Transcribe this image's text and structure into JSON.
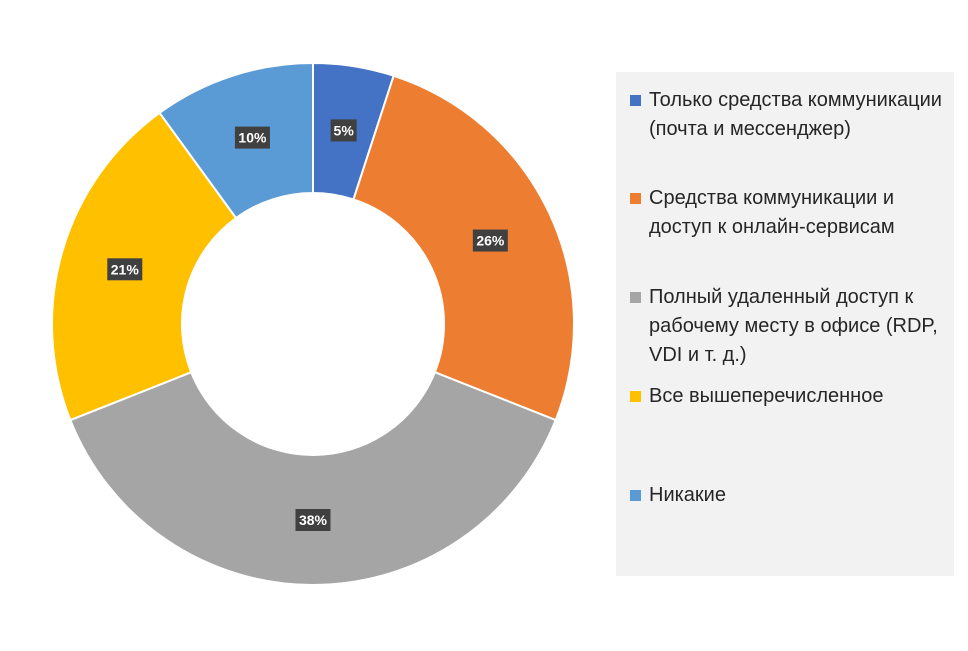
{
  "chart_data": {
    "type": "pie",
    "variant": "doughnut",
    "title": "",
    "categories": [
      "Только средства коммуникации (почта и мессенджер)",
      "Средства коммуникации и доступ к онлайн-сервисам",
      "Полный удаленный доступ к рабочему месту в офисе (RDP, VDI и т. д.)",
      "Все вышеперечисленное",
      "Никакие"
    ],
    "values": [
      5,
      26,
      38,
      21,
      10
    ],
    "value_labels": [
      "5%",
      "26%",
      "38%",
      "21%",
      "10%"
    ],
    "colors": [
      "#4472c4",
      "#ed7d31",
      "#a5a5a5",
      "#ffc000",
      "#5b9bd5"
    ],
    "legend_position": "right"
  }
}
